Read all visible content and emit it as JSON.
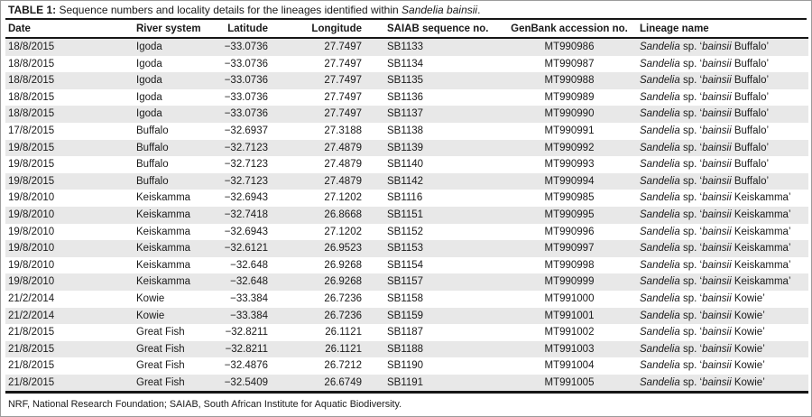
{
  "title_parts": [
    {
      "t": "TABLE 1:",
      "b": 1,
      "i": 0
    },
    {
      "t": " Sequence numbers and locality details for the lineages identified within ",
      "b": 0,
      "i": 0
    },
    {
      "t": "Sandelia bainsii",
      "b": 0,
      "i": 1
    },
    {
      "t": ".",
      "b": 0,
      "i": 0
    }
  ],
  "table": {
    "headers": [
      "Date",
      "River system",
      "Latitude",
      "Longitude",
      "SAIAB sequence no.",
      "GenBank accession no.",
      "Lineage name"
    ],
    "rows": [
      {
        "date": "18/8/2015",
        "river": "Igoda",
        "lat": "−33.0736",
        "lon": "27.7497",
        "saiab": "SB1133",
        "genbank": "MT990986",
        "lineage": [
          {
            "t": "Sandelia",
            "i": 1
          },
          {
            "t": " sp. ‘",
            "i": 0
          },
          {
            "t": "bainsii",
            "i": 1
          },
          {
            "t": " Buffalo’",
            "i": 0
          }
        ]
      },
      {
        "date": "18/8/2015",
        "river": "Igoda",
        "lat": "−33.0736",
        "lon": "27.7497",
        "saiab": "SB1134",
        "genbank": "MT990987",
        "lineage": [
          {
            "t": "Sandelia",
            "i": 1
          },
          {
            "t": " sp. ‘",
            "i": 0
          },
          {
            "t": "bainsii",
            "i": 1
          },
          {
            "t": " Buffalo’",
            "i": 0
          }
        ]
      },
      {
        "date": "18/8/2015",
        "river": "Igoda",
        "lat": "−33.0736",
        "lon": "27.7497",
        "saiab": "SB1135",
        "genbank": "MT990988",
        "lineage": [
          {
            "t": "Sandelia",
            "i": 1
          },
          {
            "t": " sp. ‘",
            "i": 0
          },
          {
            "t": "bainsii",
            "i": 1
          },
          {
            "t": " Buffalo’",
            "i": 0
          }
        ]
      },
      {
        "date": "18/8/2015",
        "river": "Igoda",
        "lat": "−33.0736",
        "lon": "27.7497",
        "saiab": "SB1136",
        "genbank": "MT990989",
        "lineage": [
          {
            "t": "Sandelia",
            "i": 1
          },
          {
            "t": " sp. ‘",
            "i": 0
          },
          {
            "t": "bainsii",
            "i": 1
          },
          {
            "t": " Buffalo’",
            "i": 0
          }
        ]
      },
      {
        "date": "18/8/2015",
        "river": "Igoda",
        "lat": "−33.0736",
        "lon": "27.7497",
        "saiab": "SB1137",
        "genbank": "MT990990",
        "lineage": [
          {
            "t": "Sandelia",
            "i": 1
          },
          {
            "t": " sp. ‘",
            "i": 0
          },
          {
            "t": "bainsii",
            "i": 1
          },
          {
            "t": " Buffalo’",
            "i": 0
          }
        ]
      },
      {
        "date": "17/8/2015",
        "river": "Buffalo",
        "lat": "−32.6937",
        "lon": "27.3188",
        "saiab": "SB1138",
        "genbank": "MT990991",
        "lineage": [
          {
            "t": "Sandelia",
            "i": 1
          },
          {
            "t": " sp. ‘",
            "i": 0
          },
          {
            "t": "bainsii",
            "i": 1
          },
          {
            "t": " Buffalo’",
            "i": 0
          }
        ]
      },
      {
        "date": "19/8/2015",
        "river": "Buffalo",
        "lat": "−32.7123",
        "lon": "27.4879",
        "saiab": "SB1139",
        "genbank": "MT990992",
        "lineage": [
          {
            "t": "Sandelia",
            "i": 1
          },
          {
            "t": " sp. ‘",
            "i": 0
          },
          {
            "t": "bainsii",
            "i": 1
          },
          {
            "t": " Buffalo’",
            "i": 0
          }
        ]
      },
      {
        "date": "19/8/2015",
        "river": "Buffalo",
        "lat": "−32.7123",
        "lon": "27.4879",
        "saiab": "SB1140",
        "genbank": "MT990993",
        "lineage": [
          {
            "t": "Sandelia",
            "i": 1
          },
          {
            "t": " sp. ‘",
            "i": 0
          },
          {
            "t": "bainsii",
            "i": 1
          },
          {
            "t": " Buffalo’",
            "i": 0
          }
        ]
      },
      {
        "date": "19/8/2015",
        "river": "Buffalo",
        "lat": "−32.7123",
        "lon": "27.4879",
        "saiab": "SB1142",
        "genbank": "MT990994",
        "lineage": [
          {
            "t": "Sandelia",
            "i": 1
          },
          {
            "t": " sp. ‘",
            "i": 0
          },
          {
            "t": "bainsii",
            "i": 1
          },
          {
            "t": " Buffalo’",
            "i": 0
          }
        ]
      },
      {
        "date": "19/8/2010",
        "river": "Keiskamma",
        "lat": "−32.6943",
        "lon": "27.1202",
        "saiab": "SB1116",
        "genbank": "MT990985",
        "lineage": [
          {
            "t": "Sandelia",
            "i": 1
          },
          {
            "t": " sp. ‘",
            "i": 0
          },
          {
            "t": "bainsii",
            "i": 1
          },
          {
            "t": " Keiskamma’",
            "i": 0
          }
        ]
      },
      {
        "date": "19/8/2010",
        "river": "Keiskamma",
        "lat": "−32.7418",
        "lon": "26.8668",
        "saiab": "SB1151",
        "genbank": "MT990995",
        "lineage": [
          {
            "t": "Sandelia",
            "i": 1
          },
          {
            "t": " sp. ‘",
            "i": 0
          },
          {
            "t": "bainsii",
            "i": 1
          },
          {
            "t": " Keiskamma’",
            "i": 0
          }
        ]
      },
      {
        "date": "19/8/2010",
        "river": "Keiskamma",
        "lat": "−32.6943",
        "lon": "27.1202",
        "saiab": "SB1152",
        "genbank": "MT990996",
        "lineage": [
          {
            "t": "Sandelia",
            "i": 1
          },
          {
            "t": " sp. ‘",
            "i": 0
          },
          {
            "t": "bainsii",
            "i": 1
          },
          {
            "t": " Keiskamma’",
            "i": 0
          }
        ]
      },
      {
        "date": "19/8/2010",
        "river": "Keiskamma",
        "lat": "−32.6121",
        "lon": "26.9523",
        "saiab": "SB1153",
        "genbank": "MT990997",
        "lineage": [
          {
            "t": "Sandelia",
            "i": 1
          },
          {
            "t": " sp. ‘",
            "i": 0
          },
          {
            "t": "bainsii",
            "i": 1
          },
          {
            "t": " Keiskamma’",
            "i": 0
          }
        ]
      },
      {
        "date": "19/8/2010",
        "river": "Keiskamma",
        "lat": "−32.648",
        "lon": "26.9268",
        "saiab": "SB1154",
        "genbank": "MT990998",
        "lineage": [
          {
            "t": "Sandelia",
            "i": 1
          },
          {
            "t": " sp. ‘",
            "i": 0
          },
          {
            "t": "bainsii",
            "i": 1
          },
          {
            "t": " Keiskamma’",
            "i": 0
          }
        ]
      },
      {
        "date": "19/8/2010",
        "river": "Keiskamma",
        "lat": "−32.648",
        "lon": "26.9268",
        "saiab": "SB1157",
        "genbank": "MT990999",
        "lineage": [
          {
            "t": "Sandelia",
            "i": 1
          },
          {
            "t": " sp. ‘",
            "i": 0
          },
          {
            "t": "bainsii",
            "i": 1
          },
          {
            "t": " Keiskamma’",
            "i": 0
          }
        ]
      },
      {
        "date": "21/2/2014",
        "river": "Kowie",
        "lat": "−33.384",
        "lon": "26.7236",
        "saiab": "SB1158",
        "genbank": "MT991000",
        "lineage": [
          {
            "t": "Sandelia",
            "i": 1
          },
          {
            "t": " sp. ‘",
            "i": 0
          },
          {
            "t": "bainsii",
            "i": 1
          },
          {
            "t": " Kowie’",
            "i": 0
          }
        ]
      },
      {
        "date": "21/2/2014",
        "river": "Kowie",
        "lat": "−33.384",
        "lon": "26.7236",
        "saiab": "SB1159",
        "genbank": "MT991001",
        "lineage": [
          {
            "t": "Sandelia",
            "i": 1
          },
          {
            "t": " sp. ‘",
            "i": 0
          },
          {
            "t": "bainsii",
            "i": 1
          },
          {
            "t": " Kowie’",
            "i": 0
          }
        ]
      },
      {
        "date": "21/8/2015",
        "river": "Great Fish",
        "lat": "−32.8211",
        "lon": "26.1121",
        "saiab": "SB1187",
        "genbank": "MT991002",
        "lineage": [
          {
            "t": "Sandelia",
            "i": 1
          },
          {
            "t": " sp. ‘",
            "i": 0
          },
          {
            "t": "bainsii",
            "i": 1
          },
          {
            "t": " Kowie’",
            "i": 0
          }
        ]
      },
      {
        "date": "21/8/2015",
        "river": "Great Fish",
        "lat": "−32.8211",
        "lon": "26.1121",
        "saiab": "SB1188",
        "genbank": "MT991003",
        "lineage": [
          {
            "t": "Sandelia",
            "i": 1
          },
          {
            "t": " sp. ‘",
            "i": 0
          },
          {
            "t": "bainsii",
            "i": 1
          },
          {
            "t": " Kowie’",
            "i": 0
          }
        ]
      },
      {
        "date": "21/8/2015",
        "river": "Great Fish",
        "lat": "−32.4876",
        "lon": "26.7212",
        "saiab": "SB1190",
        "genbank": "MT991004",
        "lineage": [
          {
            "t": "Sandelia",
            "i": 1
          },
          {
            "t": " sp. ‘",
            "i": 0
          },
          {
            "t": "bainsii",
            "i": 1
          },
          {
            "t": " Kowie’",
            "i": 0
          }
        ]
      },
      {
        "date": "21/8/2015",
        "river": "Great Fish",
        "lat": "−32.5409",
        "lon": "26.6749",
        "saiab": "SB1191",
        "genbank": "MT991005",
        "lineage": [
          {
            "t": "Sandelia",
            "i": 1
          },
          {
            "t": " sp. ‘",
            "i": 0
          },
          {
            "t": "bainsii",
            "i": 1
          },
          {
            "t": " Kowie’",
            "i": 0
          }
        ]
      }
    ]
  },
  "footnote": "NRF, National Research Foundation; SAIAB, South African Institute for Aquatic Biodiversity.",
  "colors": {
    "row_alt": "#e8e8e8",
    "rule": "#161616",
    "border": "#9b9b9b"
  }
}
